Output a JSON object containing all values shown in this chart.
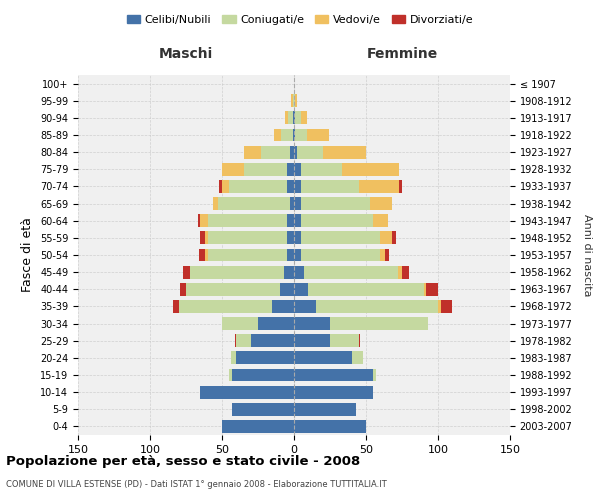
{
  "age_groups": [
    "0-4",
    "5-9",
    "10-14",
    "15-19",
    "20-24",
    "25-29",
    "30-34",
    "35-39",
    "40-44",
    "45-49",
    "50-54",
    "55-59",
    "60-64",
    "65-69",
    "70-74",
    "75-79",
    "80-84",
    "85-89",
    "90-94",
    "95-99",
    "100+"
  ],
  "birth_years": [
    "2003-2007",
    "1998-2002",
    "1993-1997",
    "1988-1992",
    "1983-1987",
    "1978-1982",
    "1973-1977",
    "1968-1972",
    "1963-1967",
    "1958-1962",
    "1953-1957",
    "1948-1952",
    "1943-1947",
    "1938-1942",
    "1933-1937",
    "1928-1932",
    "1923-1927",
    "1918-1922",
    "1913-1917",
    "1908-1912",
    "≤ 1907"
  ],
  "male": {
    "celibi": [
      50,
      43,
      65,
      43,
      40,
      30,
      25,
      15,
      10,
      7,
      5,
      5,
      5,
      3,
      5,
      5,
      3,
      1,
      1,
      0,
      0
    ],
    "coniugati": [
      0,
      0,
      0,
      2,
      4,
      10,
      25,
      65,
      65,
      65,
      55,
      55,
      55,
      50,
      40,
      30,
      20,
      8,
      3,
      1,
      0
    ],
    "vedovi": [
      0,
      0,
      0,
      0,
      0,
      0,
      0,
      0,
      0,
      0,
      2,
      2,
      5,
      3,
      5,
      15,
      12,
      5,
      2,
      1,
      0
    ],
    "divorziati": [
      0,
      0,
      0,
      0,
      0,
      1,
      0,
      4,
      4,
      5,
      4,
      3,
      2,
      0,
      2,
      0,
      0,
      0,
      0,
      0,
      0
    ]
  },
  "female": {
    "nubili": [
      50,
      43,
      55,
      55,
      40,
      25,
      25,
      15,
      10,
      7,
      5,
      5,
      5,
      5,
      5,
      5,
      2,
      1,
      1,
      0,
      0
    ],
    "coniugate": [
      0,
      0,
      0,
      2,
      8,
      20,
      68,
      85,
      80,
      65,
      55,
      55,
      50,
      48,
      40,
      28,
      18,
      8,
      4,
      1,
      0
    ],
    "vedove": [
      0,
      0,
      0,
      0,
      0,
      0,
      0,
      2,
      2,
      3,
      3,
      8,
      10,
      15,
      28,
      40,
      30,
      15,
      4,
      1,
      0
    ],
    "divorziate": [
      0,
      0,
      0,
      0,
      0,
      1,
      0,
      8,
      8,
      5,
      3,
      3,
      0,
      0,
      2,
      0,
      0,
      0,
      0,
      0,
      0
    ]
  },
  "colors": {
    "celibi": "#4472a8",
    "coniugati": "#c5d9a0",
    "vedovi": "#f0c060",
    "divorziati": "#c0302a"
  },
  "title": "Popolazione per età, sesso e stato civile - 2008",
  "subtitle": "COMUNE DI VILLA ESTENSE (PD) - Dati ISTAT 1° gennaio 2008 - Elaborazione TUTTITALIA.IT",
  "xlabel_left": "Maschi",
  "xlabel_right": "Femmine",
  "ylabel_left": "Fasce di età",
  "ylabel_right": "Anni di nascita",
  "xlim": 150,
  "bg_color": "#f0f0f0",
  "grid_color": "#cccccc"
}
